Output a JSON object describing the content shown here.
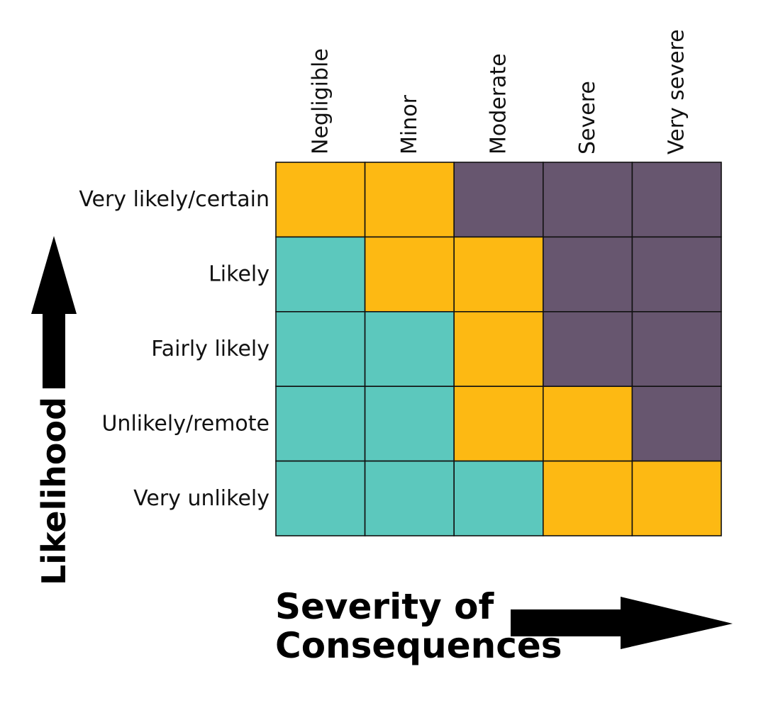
{
  "chart_data": {
    "type": "heatmap",
    "x_axis_title_lines": [
      "Severity of",
      "Consequences"
    ],
    "y_axis_title": "Likelihood",
    "columns": [
      "Negligible",
      "Minor",
      "Moderate",
      "Severe",
      "Very severe"
    ],
    "rows": [
      "Very likely/certain",
      "Likely",
      "Fairly likely",
      "Unlikely/remote",
      "Very unlikely"
    ],
    "level_colors": {
      "low": "#5cc8bd",
      "medium": "#fdb913",
      "high": "#67566f"
    },
    "cells": [
      [
        "medium",
        "medium",
        "high",
        "high",
        "high"
      ],
      [
        "low",
        "medium",
        "medium",
        "high",
        "high"
      ],
      [
        "low",
        "low",
        "medium",
        "high",
        "high"
      ],
      [
        "low",
        "low",
        "medium",
        "medium",
        "high"
      ],
      [
        "low",
        "low",
        "low",
        "medium",
        "medium"
      ]
    ]
  }
}
